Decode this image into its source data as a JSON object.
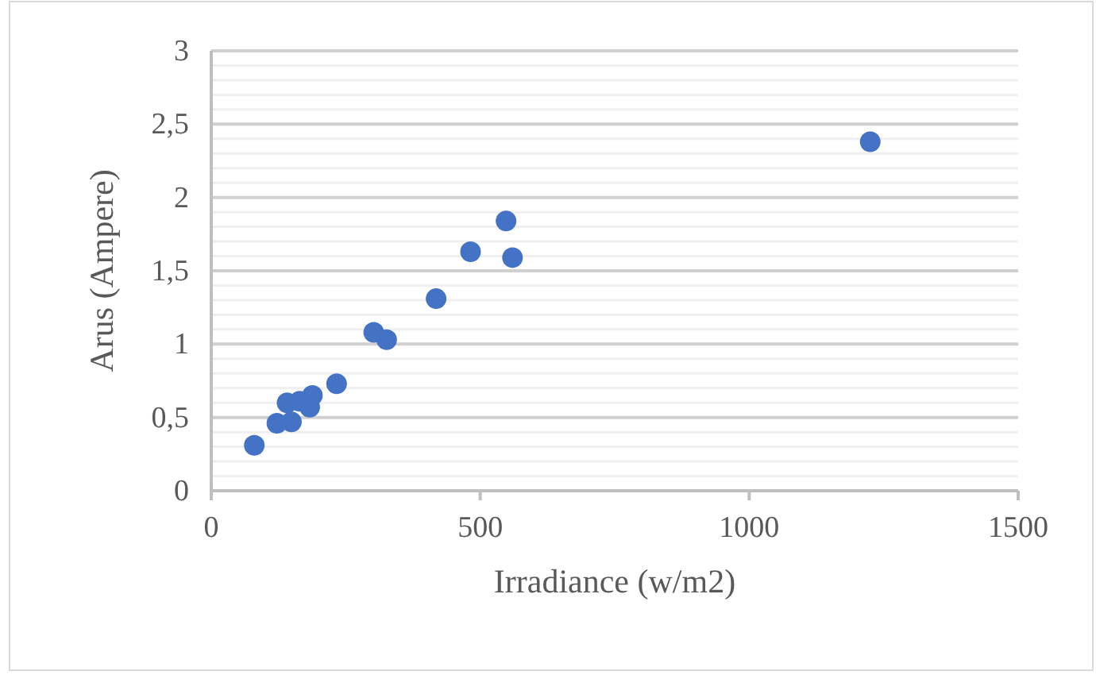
{
  "chart_data": {
    "type": "scatter",
    "xlabel": "Irradiance (w/m2)",
    "ylabel": "Arus (Ampere)",
    "xlim": [
      0,
      1500
    ],
    "xticks": [
      0,
      500,
      1000,
      1500
    ],
    "ylim": [
      0,
      3
    ],
    "yticks": [
      0,
      {
        "value": 0.1,
        "label": null
      },
      {
        "value": 0.2,
        "label": null
      },
      {
        "value": 0.3,
        "label": null
      },
      {
        "value": 0.4,
        "label": null
      },
      {
        "value": 0.5,
        "label": "0,5"
      },
      {
        "value": 0.6,
        "label": null
      },
      {
        "value": 0.7,
        "label": null
      },
      {
        "value": 0.8,
        "label": null
      },
      {
        "value": 0.9,
        "label": null
      },
      1,
      {
        "value": 1.1,
        "label": null
      },
      {
        "value": 1.2,
        "label": null
      },
      {
        "value": 1.3,
        "label": null
      },
      {
        "value": 1.4,
        "label": null
      },
      {
        "value": 1.5,
        "label": "1,5"
      },
      {
        "value": 1.6,
        "label": null
      },
      {
        "value": 1.7,
        "label": null
      },
      {
        "value": 1.8,
        "label": null
      },
      {
        "value": 1.9,
        "label": null
      },
      2,
      {
        "value": 2.1,
        "label": null
      },
      {
        "value": 2.2,
        "label": null
      },
      {
        "value": 2.3,
        "label": null
      },
      {
        "value": 2.4,
        "label": null
      },
      {
        "value": 2.5,
        "label": "2,5"
      },
      {
        "value": 2.6,
        "label": null
      },
      {
        "value": 2.7,
        "label": null
      },
      {
        "value": 2.8,
        "label": null
      },
      {
        "value": 2.9,
        "label": null
      },
      3
    ],
    "grid": "y",
    "marker": "circle",
    "series": [
      {
        "color": "#4472c4",
        "x": [
          80,
          122,
          149,
          141,
          164,
          188,
          183,
          233,
          302,
          326,
          418,
          482,
          548,
          560,
          1225
        ],
        "values": [
          0.31,
          0.46,
          0.47,
          0.6,
          0.61,
          0.65,
          0.57,
          0.73,
          1.08,
          1.03,
          1.31,
          1.63,
          1.84,
          1.59,
          2.38
        ]
      }
    ]
  }
}
